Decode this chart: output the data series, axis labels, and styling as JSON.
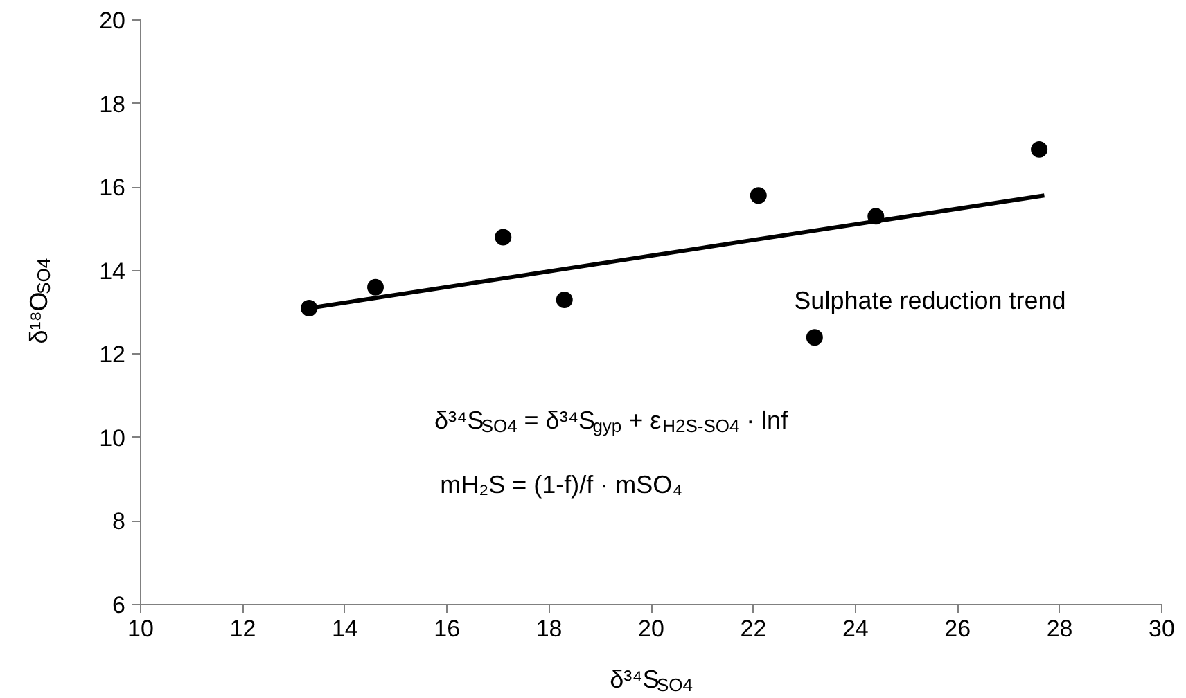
{
  "chart_data": {
    "type": "scatter",
    "xlabel": "δ³⁴S$_{SO4}$",
    "ylabel": "δ¹⁸O$_{SO4}$",
    "xlim": [
      10,
      30
    ],
    "ylim": [
      6,
      20
    ],
    "xticks": [
      10,
      12,
      14,
      16,
      18,
      20,
      22,
      24,
      26,
      28,
      30
    ],
    "yticks": [
      6,
      8,
      10,
      12,
      14,
      16,
      18,
      20
    ],
    "series": [
      {
        "marker": "circle",
        "color": "#000000",
        "x": [
          13.3,
          14.6,
          17.1,
          18.3,
          22.1,
          23.2,
          24.4,
          27.6
        ],
        "values": [
          13.1,
          13.6,
          14.8,
          13.3,
          15.8,
          12.4,
          15.3,
          16.9
        ]
      },
      {
        "type": "line",
        "color": "#000000",
        "x": [
          13.3,
          27.7
        ],
        "values": [
          13.1,
          15.8
        ]
      }
    ],
    "annotations": [
      "Sulphate reduction trend",
      "δ³⁴S$_{SO4}$ = δ³⁴S$_{gyp}$ + ε$_{H2S-SO4}$ · lnf",
      "mH₂S = (1-f)/f · mSO₄"
    ]
  }
}
